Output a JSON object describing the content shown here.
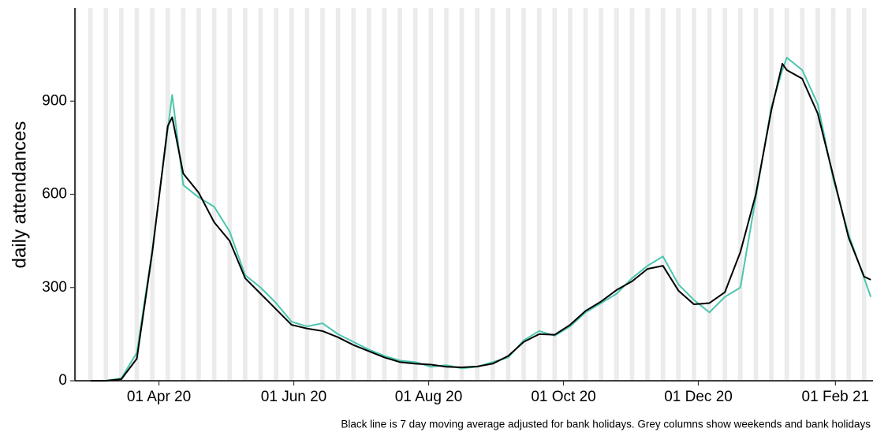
{
  "chart_data": {
    "type": "line",
    "y_label": "daily attendances",
    "caption": "Black line is 7 day moving average adjusted for bank holidays. Grey columns show weekends and bank holidays",
    "x": [
      "2020-03-01",
      "2020-03-08",
      "2020-03-15",
      "2020-03-22",
      "2020-03-29",
      "2020-04-05",
      "2020-04-07",
      "2020-04-12",
      "2020-04-19",
      "2020-04-26",
      "2020-05-03",
      "2020-05-10",
      "2020-05-17",
      "2020-05-24",
      "2020-05-31",
      "2020-06-07",
      "2020-06-14",
      "2020-06-21",
      "2020-06-28",
      "2020-07-05",
      "2020-07-12",
      "2020-07-19",
      "2020-07-26",
      "2020-08-02",
      "2020-08-09",
      "2020-08-16",
      "2020-08-23",
      "2020-08-30",
      "2020-09-06",
      "2020-09-13",
      "2020-09-20",
      "2020-09-27",
      "2020-10-04",
      "2020-10-11",
      "2020-10-18",
      "2020-10-25",
      "2020-11-01",
      "2020-11-08",
      "2020-11-15",
      "2020-11-22",
      "2020-11-29",
      "2020-12-06",
      "2020-12-13",
      "2020-12-20",
      "2020-12-27",
      "2021-01-03",
      "2021-01-08",
      "2021-01-10",
      "2021-01-17",
      "2021-01-24",
      "2021-01-31",
      "2021-02-07",
      "2021-02-14",
      "2021-02-17"
    ],
    "series": [
      {
        "name": "daily",
        "color": "#4cc6ae",
        "width": 2,
        "values": [
          0,
          0,
          8,
          90,
          420,
          810,
          920,
          630,
          590,
          560,
          480,
          340,
          300,
          250,
          190,
          175,
          185,
          150,
          125,
          100,
          80,
          65,
          60,
          45,
          50,
          40,
          45,
          60,
          75,
          130,
          160,
          145,
          175,
          220,
          250,
          280,
          330,
          370,
          400,
          310,
          260,
          220,
          270,
          300,
          590,
          880,
          1000,
          1040,
          1000,
          890,
          650,
          470,
          330,
          270
        ]
      },
      {
        "name": "moving average",
        "color": "#000000",
        "width": 2,
        "values": [
          0,
          0,
          5,
          71,
          414,
          820,
          848,
          667,
          605,
          510,
          450,
          330,
          280,
          230,
          180,
          168,
          160,
          140,
          115,
          95,
          75,
          60,
          55,
          52,
          45,
          43,
          46,
          55,
          80,
          125,
          150,
          148,
          180,
          225,
          255,
          292,
          320,
          360,
          370,
          290,
          246,
          250,
          285,
          414,
          600,
          870,
          1020,
          1000,
          972,
          860,
          660,
          460,
          335,
          325
        ]
      }
    ],
    "xlim": [
      "2020-02-23",
      "2021-02-18"
    ],
    "xticks": [
      {
        "value": "2020-04-01",
        "label": "01 Apr 20"
      },
      {
        "value": "2020-06-01",
        "label": "01 Jun 20"
      },
      {
        "value": "2020-08-01",
        "label": "01 Aug 20"
      },
      {
        "value": "2020-10-01",
        "label": "01 Oct 20"
      },
      {
        "value": "2020-12-01",
        "label": "01 Dec 20"
      },
      {
        "value": "2021-02-01",
        "label": "01 Feb 21"
      }
    ],
    "ylim": [
      0,
      1200
    ],
    "yticks": [
      0,
      300,
      600,
      900
    ],
    "weekend_color": "#ebebeb"
  }
}
